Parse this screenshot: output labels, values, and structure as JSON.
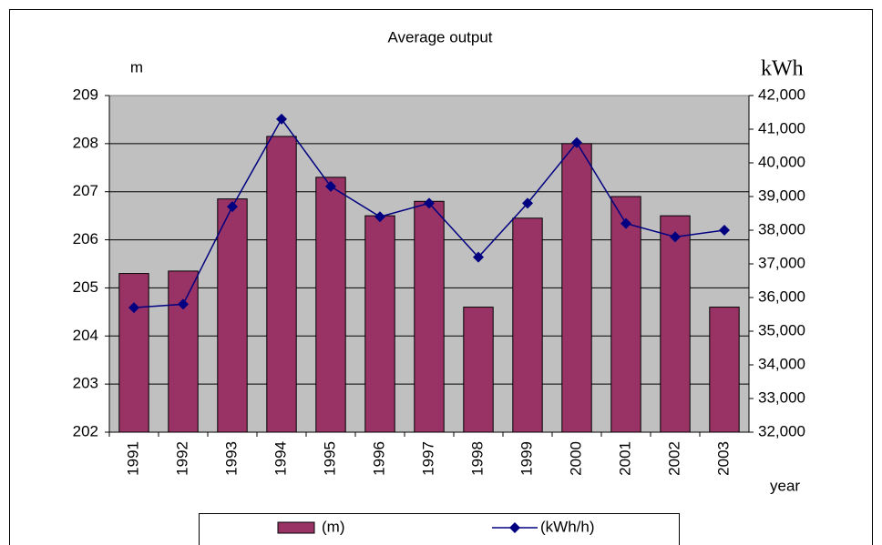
{
  "chart_data": {
    "type": "bar",
    "title": "Average output",
    "y_label": "m",
    "y2_label": "kWh",
    "x_label": "year",
    "categories": [
      "1991",
      "1992",
      "1993",
      "1994",
      "1995",
      "1996",
      "1997",
      "1998",
      "1999",
      "2000",
      "2001",
      "2002",
      "2003"
    ],
    "series": [
      {
        "name": "(m)",
        "type": "bar",
        "color": "#993366",
        "values": [
          205.3,
          205.35,
          206.85,
          208.15,
          207.3,
          206.5,
          206.8,
          204.6,
          206.45,
          208.0,
          206.9,
          206.5,
          204.6
        ]
      },
      {
        "name": "(kWh/h)",
        "type": "line",
        "axis": "y2",
        "color": "#000080",
        "values": [
          35700,
          35800,
          38700,
          41300,
          39300,
          38400,
          38800,
          37200,
          38800,
          40600,
          38200,
          37800,
          38000
        ]
      }
    ],
    "ylim": [
      202,
      209
    ],
    "yticks": [
      202,
      203,
      204,
      205,
      206,
      207,
      208,
      209
    ],
    "y2lim": [
      32000,
      42000
    ],
    "y2ticks": [
      {
        "value": 32000,
        "label": "32,000"
      },
      {
        "value": 33000,
        "label": "33,000"
      },
      {
        "value": 34000,
        "label": "34,000"
      },
      {
        "value": 35000,
        "label": "35,000"
      },
      {
        "value": 36000,
        "label": "36,000"
      },
      {
        "value": 37000,
        "label": "37,000"
      },
      {
        "value": 38000,
        "label": "38,000"
      },
      {
        "value": 39000,
        "label": "39,000"
      },
      {
        "value": 40000,
        "label": "40,000"
      },
      {
        "value": 41000,
        "label": "41,000"
      },
      {
        "value": 42000,
        "label": "42,000"
      }
    ],
    "grid": true,
    "legend": "bottom"
  }
}
